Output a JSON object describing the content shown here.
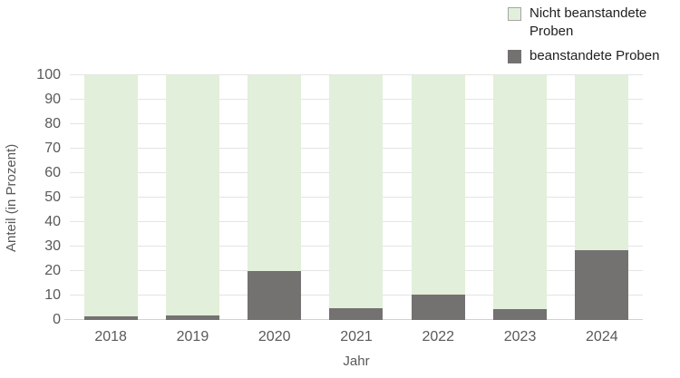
{
  "legend": {
    "items": [
      {
        "label": "Nicht beanstandete Proben",
        "color": "#e2efda",
        "border": "#a6a6a6"
      },
      {
        "label": "beanstandete Proben",
        "color": "#747171",
        "border": "#747171"
      }
    ]
  },
  "chart_data": {
    "type": "bar",
    "stacked": true,
    "title": "",
    "xlabel": "Jahr",
    "ylabel": "Anteil (in Prozent)",
    "categories": [
      "2018",
      "2019",
      "2020",
      "2021",
      "2022",
      "2023",
      "2024"
    ],
    "series": [
      {
        "name": "Nicht beanstandete Proben",
        "color": "#e2efda",
        "position": "top",
        "values": [
          98.5,
          98,
          80,
          95,
          89.5,
          95.5,
          71.5
        ]
      },
      {
        "name": "beanstandete Proben",
        "color": "#747171",
        "position": "bottom",
        "values": [
          1.5,
          2,
          20,
          5,
          10.5,
          4.5,
          28.5
        ]
      }
    ],
    "ylim": [
      0,
      100
    ],
    "yticks": [
      0,
      10,
      20,
      30,
      40,
      50,
      60,
      70,
      80,
      90,
      100
    ],
    "grid": true,
    "legend_position": "top-right",
    "colors": {
      "axis_text": "#595959",
      "legend_text": "#212121",
      "gridline": "#e4e4e4",
      "baseline": "#d2d0d0",
      "background": "#ffffff"
    }
  }
}
